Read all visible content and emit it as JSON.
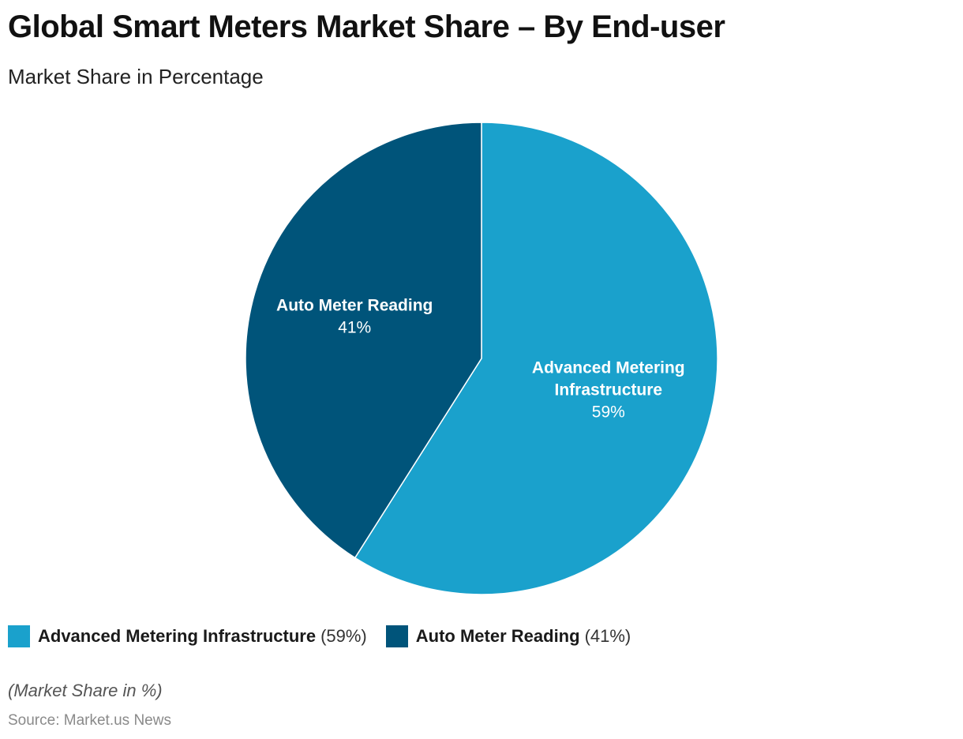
{
  "header": {
    "title": "Global Smart Meters Market Share – By End-user",
    "subtitle": "Market Share in Percentage"
  },
  "chart_data": {
    "type": "pie",
    "title": "Global Smart Meters Market Share – By End-user",
    "subtitle": "Market Share in Percentage",
    "unit": "%",
    "slices": [
      {
        "label": "Advanced Metering Infrastructure",
        "value": 59,
        "value_text": "59%",
        "legend_value": "(59%)",
        "color": "#1aa1cc",
        "label_lines": [
          "Advanced Metering",
          "Infrastructure"
        ]
      },
      {
        "label": "Auto Meter Reading",
        "value": 41,
        "value_text": "41%",
        "legend_value": "(41%)",
        "color": "#00547a",
        "label_lines": [
          "Auto Meter Reading"
        ]
      }
    ],
    "start_angle": "12 o'clock",
    "direction": "clockwise",
    "legend_position": "bottom-left"
  },
  "footer": {
    "note": "(Market Share in %)",
    "source": "Source: Market.us News"
  }
}
